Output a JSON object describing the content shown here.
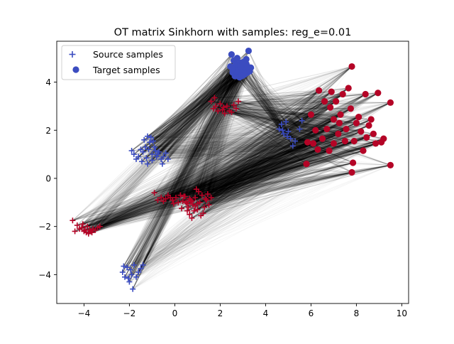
{
  "chart_data": {
    "type": "scatter",
    "title": "OT matrix Sinkhorn with samples: reg_e=0.01",
    "xlabel": "",
    "ylabel": "",
    "xlim": [
      -5.2,
      10.3
    ],
    "ylim": [
      -5.2,
      5.7
    ],
    "xticks": [
      "−4",
      "−2",
      "0",
      "2",
      "4",
      "6",
      "8",
      "10"
    ],
    "xtick_values": [
      -4,
      -2,
      0,
      2,
      4,
      6,
      8,
      10
    ],
    "yticks": [
      "−4",
      "−2",
      "0",
      "2",
      "4"
    ],
    "ytick_values": [
      -4,
      -2,
      0,
      2,
      4
    ],
    "grid": false,
    "legend_position": "top-left",
    "colors": {
      "blue": "#3b4cc0",
      "red": "#b40426",
      "lines": "#000000"
    },
    "series": [
      {
        "name": "Source samples",
        "marker": "plus",
        "points": [
          [
            -4.5,
            -1.75
          ],
          [
            -4.4,
            -2.2
          ],
          [
            -4.3,
            -1.95
          ],
          [
            -4.2,
            -2.1
          ],
          [
            -4.1,
            -2.05
          ],
          [
            -4.0,
            -2.2
          ],
          [
            -3.95,
            -2.15
          ],
          [
            -3.9,
            -2.25
          ],
          [
            -3.85,
            -2.0
          ],
          [
            -3.8,
            -2.3
          ],
          [
            -3.75,
            -2.15
          ],
          [
            -3.7,
            -2.2
          ],
          [
            -3.6,
            -2.1
          ],
          [
            -3.5,
            -2.15
          ],
          [
            -3.4,
            -2.05
          ],
          [
            -3.3,
            -2.0
          ],
          [
            -4.05,
            -1.9
          ],
          [
            -3.65,
            -2.25
          ],
          [
            -0.9,
            -0.6
          ],
          [
            -0.75,
            -0.9
          ],
          [
            -0.6,
            -0.8
          ],
          [
            -0.5,
            -0.95
          ],
          [
            -0.4,
            -0.85
          ],
          [
            -0.3,
            -0.7
          ],
          [
            -0.2,
            -0.8
          ],
          [
            -0.1,
            -0.9
          ],
          [
            0.05,
            -0.8
          ],
          [
            0.15,
            -1.0
          ],
          [
            0.25,
            -0.7
          ],
          [
            0.35,
            -0.95
          ],
          [
            0.45,
            -0.75
          ],
          [
            0.55,
            -1.05
          ],
          [
            0.65,
            -0.85
          ],
          [
            0.75,
            -0.95
          ],
          [
            -0.05,
            -1.05
          ],
          [
            0.3,
            -1.25
          ],
          [
            0.4,
            -0.75
          ],
          [
            0.5,
            -1.0
          ],
          [
            0.6,
            -1.2
          ],
          [
            0.7,
            -0.9
          ],
          [
            0.8,
            -1.1
          ],
          [
            0.9,
            -0.8
          ],
          [
            1.0,
            -1.3
          ],
          [
            1.1,
            -1.0
          ],
          [
            1.2,
            -0.7
          ],
          [
            1.3,
            -1.2
          ],
          [
            1.4,
            -0.9
          ],
          [
            1.5,
            -1.1
          ],
          [
            1.6,
            -0.8
          ],
          [
            0.65,
            -1.5
          ],
          [
            0.85,
            -1.35
          ],
          [
            1.05,
            -0.55
          ],
          [
            0.75,
            -1.65
          ],
          [
            1.25,
            -1.45
          ],
          [
            0.95,
            -0.45
          ],
          [
            1.15,
            -1.55
          ],
          [
            0.55,
            -1.35
          ],
          [
            1.45,
            -0.65
          ],
          [
            0.7,
            -0.95
          ],
          [
            1.0,
            -1.05
          ],
          [
            1.35,
            -0.85
          ],
          [
            0.9,
            -1.15
          ],
          [
            1.6,
            3.2
          ],
          [
            1.7,
            2.9
          ],
          [
            1.8,
            3.0
          ],
          [
            1.9,
            2.8
          ],
          [
            2.0,
            3.1
          ],
          [
            2.1,
            2.85
          ],
          [
            2.2,
            2.7
          ],
          [
            2.3,
            3.0
          ],
          [
            2.4,
            2.8
          ],
          [
            2.5,
            2.75
          ],
          [
            2.6,
            3.05
          ],
          [
            2.7,
            2.9
          ],
          [
            2.8,
            3.2
          ],
          [
            1.75,
            3.35
          ],
          [
            2.15,
            2.95
          ],
          [
            -2.3,
            -3.9
          ],
          [
            -2.2,
            -4.1
          ],
          [
            -2.1,
            -3.7
          ],
          [
            -2.0,
            -4.3
          ],
          [
            -1.95,
            -3.8
          ],
          [
            -1.9,
            -4.0
          ],
          [
            -1.85,
            -4.6
          ],
          [
            -1.8,
            -3.6
          ],
          [
            -1.7,
            -4.1
          ],
          [
            -1.6,
            -3.9
          ],
          [
            -1.5,
            -3.75
          ],
          [
            -1.4,
            -3.6
          ],
          [
            -2.25,
            -3.65
          ],
          [
            -2.05,
            -4.15
          ],
          [
            -1.9,
            1.15
          ],
          [
            -1.8,
            1.0
          ],
          [
            -1.7,
            0.8
          ],
          [
            -1.6,
            0.9
          ],
          [
            -1.5,
            1.2
          ],
          [
            -1.4,
            1.1
          ],
          [
            -1.3,
            1.3
          ],
          [
            -1.2,
            0.6
          ],
          [
            -1.1,
            1.5
          ],
          [
            -1.0,
            1.0
          ],
          [
            -0.9,
            1.3
          ],
          [
            -0.8,
            0.9
          ],
          [
            -0.7,
            1.1
          ],
          [
            -0.6,
            0.8
          ],
          [
            -0.5,
            0.9
          ],
          [
            -0.4,
            1.05
          ],
          [
            -0.3,
            0.8
          ],
          [
            -1.35,
            1.6
          ],
          [
            -1.2,
            1.75
          ],
          [
            -1.05,
            1.7
          ],
          [
            -0.95,
            1.55
          ],
          [
            -1.25,
            0.85
          ],
          [
            -1.45,
            0.7
          ],
          [
            -1.15,
            1.2
          ],
          [
            -0.85,
            1.15
          ],
          [
            -1.0,
            0.75
          ],
          [
            -0.75,
            1.0
          ],
          [
            -0.55,
            0.6
          ],
          [
            4.6,
            2.05
          ],
          [
            4.7,
            2.25
          ],
          [
            4.8,
            1.85
          ],
          [
            4.9,
            2.35
          ],
          [
            5.0,
            1.95
          ],
          [
            5.1,
            1.65
          ],
          [
            5.2,
            1.35
          ],
          [
            5.3,
            1.55
          ],
          [
            5.5,
            2.05
          ],
          [
            5.6,
            2.4
          ],
          [
            4.75,
            2.0
          ],
          [
            4.95,
            1.75
          ]
        ]
      },
      {
        "name": "Target samples",
        "marker": "circle",
        "points": [
          [
            2.45,
            4.65
          ],
          [
            2.55,
            4.4
          ],
          [
            2.6,
            4.9
          ],
          [
            2.65,
            4.55
          ],
          [
            2.7,
            4.75
          ],
          [
            2.75,
            4.35
          ],
          [
            2.8,
            4.6
          ],
          [
            2.85,
            4.5
          ],
          [
            2.9,
            4.8
          ],
          [
            2.95,
            4.45
          ],
          [
            3.0,
            4.65
          ],
          [
            3.05,
            4.3
          ],
          [
            3.1,
            4.55
          ],
          [
            3.15,
            4.75
          ],
          [
            3.2,
            4.4
          ],
          [
            3.25,
            5.3
          ],
          [
            3.35,
            4.6
          ],
          [
            2.5,
            5.15
          ],
          [
            2.65,
            4.25
          ],
          [
            2.75,
            5.0
          ],
          [
            2.85,
            4.2
          ],
          [
            2.9,
            4.65
          ],
          [
            3.1,
            4.35
          ],
          [
            3.15,
            4.95
          ],
          [
            3.3,
            4.45
          ],
          [
            2.7,
            4.45
          ],
          [
            2.55,
            4.55
          ],
          [
            3.05,
            4.85
          ],
          [
            2.95,
            4.25
          ],
          [
            3.2,
            4.65
          ],
          [
            5.8,
            0.6
          ],
          [
            5.85,
            1.5
          ],
          [
            6.0,
            2.65
          ],
          [
            6.1,
            1.45
          ],
          [
            6.2,
            2.0
          ],
          [
            6.3,
            1.2
          ],
          [
            6.35,
            3.65
          ],
          [
            6.5,
            1.65
          ],
          [
            6.6,
            3.2
          ],
          [
            6.7,
            2.05
          ],
          [
            6.8,
            1.15
          ],
          [
            6.85,
            2.95
          ],
          [
            6.9,
            3.6
          ],
          [
            7.0,
            1.45
          ],
          [
            7.0,
            2.45
          ],
          [
            7.1,
            3.2
          ],
          [
            7.2,
            1.85
          ],
          [
            7.3,
            2.65
          ],
          [
            7.4,
            3.5
          ],
          [
            7.5,
            1.55
          ],
          [
            7.55,
            2.05
          ],
          [
            7.65,
            3.75
          ],
          [
            7.75,
            2.9
          ],
          [
            7.8,
            0.25
          ],
          [
            7.8,
            4.65
          ],
          [
            7.85,
            0.65
          ],
          [
            7.9,
            1.55
          ],
          [
            8.0,
            2.3
          ],
          [
            8.1,
            2.55
          ],
          [
            8.2,
            1.95
          ],
          [
            8.3,
            1.15
          ],
          [
            8.4,
            3.5
          ],
          [
            8.45,
            1.7
          ],
          [
            8.55,
            2.2
          ],
          [
            8.65,
            2.45
          ],
          [
            8.75,
            1.85
          ],
          [
            8.95,
            3.55
          ],
          [
            9.1,
            1.5
          ],
          [
            9.2,
            1.65
          ],
          [
            9.5,
            3.15
          ],
          [
            9.5,
            0.55
          ],
          [
            7.25,
            2.3
          ],
          [
            8.85,
            1.45
          ]
        ]
      }
    ]
  },
  "legend": {
    "items": [
      {
        "label": "Source samples",
        "marker": "plus"
      },
      {
        "label": "Target samples",
        "marker": "circle"
      }
    ]
  }
}
